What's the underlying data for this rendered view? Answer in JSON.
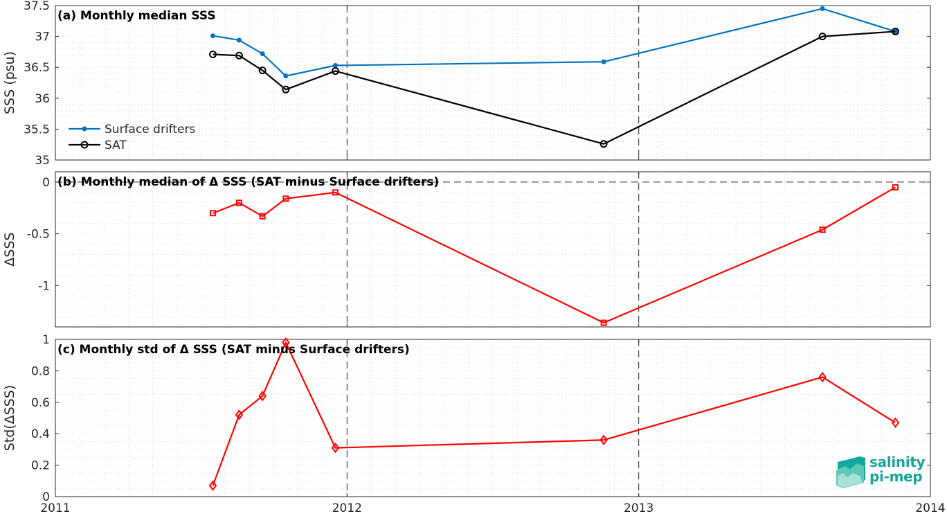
{
  "chart_data": [
    {
      "type": "line",
      "title": "(a) Monthly median SSS",
      "ylabel": "SSS (psu)",
      "xlim": [
        2011,
        2014
      ],
      "ylim": [
        35,
        37.5
      ],
      "yticks": [
        "35",
        "35.5",
        "36",
        "36.5",
        "37",
        "37.5"
      ],
      "legend_position": "bottom-left",
      "grid": true,
      "series": [
        {
          "name": "Surface drifters",
          "color": "#0072bd",
          "marker": "dot",
          "x": [
            2011.54,
            2011.63,
            2011.71,
            2011.79,
            2011.96,
            2012.88,
            2013.63,
            2013.88
          ],
          "values": [
            37.01,
            36.94,
            36.72,
            36.36,
            36.53,
            36.59,
            37.45,
            37.08
          ]
        },
        {
          "name": "SAT",
          "color": "#000000",
          "marker": "circle",
          "x": [
            2011.54,
            2011.63,
            2011.71,
            2011.79,
            2011.96,
            2012.88,
            2013.63,
            2013.88
          ],
          "values": [
            36.71,
            36.69,
            36.45,
            36.14,
            36.44,
            35.26,
            37.0,
            37.08
          ]
        }
      ]
    },
    {
      "type": "line",
      "title": "(b) Monthly median of Δ SSS (SAT minus Surface drifters)",
      "ylabel": "ΔSSS",
      "xlim": [
        2011,
        2014
      ],
      "ylim": [
        -1.4,
        0.1
      ],
      "yticks": [
        "-1",
        "-0.5",
        "0"
      ],
      "grid": true,
      "series": [
        {
          "color": "#ff0000",
          "marker": "square",
          "x": [
            2011.54,
            2011.63,
            2011.71,
            2011.79,
            2011.96,
            2012.88,
            2013.63,
            2013.88
          ],
          "values": [
            -0.3,
            -0.2,
            -0.33,
            -0.16,
            -0.1,
            -1.36,
            -0.46,
            -0.05
          ]
        }
      ]
    },
    {
      "type": "line",
      "title": "(c) Monthly std of Δ SSS (SAT minus Surface drifters)",
      "ylabel": "Std(ΔSSS)",
      "xlabel": "",
      "xlim": [
        2011,
        2014
      ],
      "xticks": [
        "2011",
        "2012",
        "2013",
        "2014"
      ],
      "ylim": [
        0,
        1
      ],
      "yticks": [
        "0",
        "0.2",
        "0.4",
        "0.6",
        "0.8",
        "1"
      ],
      "grid": true,
      "series": [
        {
          "color": "#ff0000",
          "marker": "diamond",
          "x": [
            2011.54,
            2011.63,
            2011.71,
            2011.79,
            2011.96,
            2012.88,
            2013.63,
            2013.88
          ],
          "values": [
            0.07,
            0.52,
            0.64,
            0.98,
            0.31,
            0.36,
            0.76,
            0.47
          ]
        }
      ]
    }
  ],
  "logo": {
    "line1": "salinity",
    "line2": "pi-mep",
    "color": "#1aa59a"
  }
}
